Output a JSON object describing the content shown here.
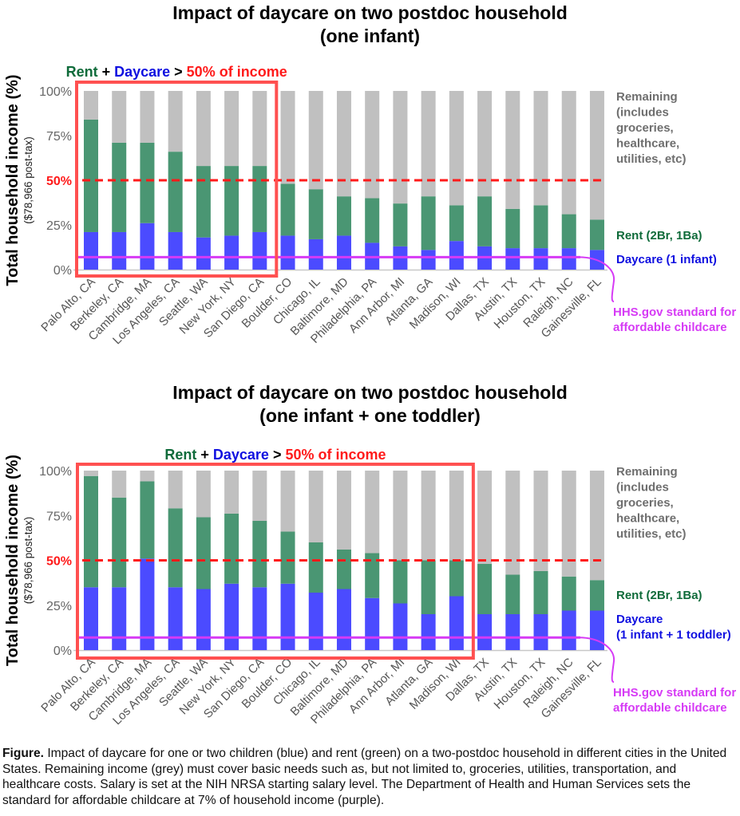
{
  "colors": {
    "daycare": "#4b4bff",
    "rent": "#4a9673",
    "remaining": "#c0c0c0",
    "threshold": "#ff1a1a",
    "highlight_box": "#ff5050",
    "hhs": "#d63af5",
    "rent_label": "#0f6b3a",
    "daycare_label": "#1010e0",
    "remaining_label": "#6e6e6e",
    "axis_text": "#666666"
  },
  "caption": {
    "lead": "Figure.",
    "text": " Impact of daycare for one or two children (blue) and rent (green) on a two-postdoc household in different cities in the United States. Remaining income (grey) must cover basic needs such as, but not limited to, groceries, utilities, transportation, and healthcare costs. Salary is set at the NIH NRSA starting salary level. The Department of Health and Human Services sets the standard for affordable childcare at 7% of household income (purple)."
  },
  "chart_data": [
    {
      "type": "bar",
      "stacked": true,
      "title": [
        "Impact of daycare on two postdoc household",
        "(one infant)"
      ],
      "ylabel": "Total household income (%)",
      "ylabel_sub": "($78,966 post-tax)",
      "ylim": [
        0,
        100
      ],
      "yticks": [
        "0%",
        "25%",
        "50%",
        "75%",
        "100%"
      ],
      "ytick_values": [
        0,
        25,
        50,
        75,
        100
      ],
      "grid": false,
      "categories": [
        "Palo Alto, CA",
        "Berkeley, CA",
        "Cambridge, MA",
        "Los Angeles, CA",
        "Seattle, WA",
        "New York, NY",
        "San Diego, CA",
        "Boulder, CO",
        "Chicago, IL",
        "Baltimore, MD",
        "Philadelphia, PA",
        "Ann Arbor, MI",
        "Atlanta, GA",
        "Madison, WI",
        "Dallas, TX",
        "Austin, TX",
        "Houston, TX",
        "Raleigh, NC",
        "Gainesville, FL"
      ],
      "series": [
        {
          "name": "Daycare (1 infant)",
          "values": [
            21,
            21,
            26,
            21,
            18,
            19,
            21,
            19,
            17,
            19,
            15,
            13,
            11,
            16,
            13,
            12,
            12,
            12,
            11
          ]
        },
        {
          "name": "Rent (2Br, 1Ba)",
          "values": [
            63,
            50,
            45,
            45,
            40,
            39,
            37,
            29,
            28,
            22,
            25,
            24,
            30,
            20,
            28,
            22,
            24,
            19,
            17
          ]
        },
        {
          "name": "Remaining (includes groceries, healthcare, utilities, etc)",
          "values": [
            16,
            29,
            29,
            34,
            42,
            42,
            42,
            52,
            55,
            59,
            60,
            63,
            59,
            64,
            59,
            66,
            64,
            69,
            72
          ]
        }
      ],
      "threshold": {
        "value": 50,
        "label": "50%"
      },
      "hhs_standard": {
        "value": 7,
        "label": [
          "HHS.gov standard for",
          "affordable childcare"
        ]
      },
      "highlight": {
        "first_index": 0,
        "last_index": 6
      },
      "annotation": {
        "parts": [
          {
            "text": "Rent",
            "role": "rent"
          },
          {
            "text": " + ",
            "role": "plain"
          },
          {
            "text": "Daycare",
            "role": "daycare"
          },
          {
            "text": " > ",
            "role": "plain"
          },
          {
            "text": "50% of income",
            "role": "threshold"
          }
        ]
      },
      "legend": {
        "placement": "right",
        "remaining": [
          "Remaining",
          "(includes",
          "groceries,",
          "healthcare,",
          "utilities, etc)"
        ],
        "rent": [
          "Rent (2Br, 1Ba)"
        ],
        "daycare": [
          "Daycare (1 infant)"
        ]
      }
    },
    {
      "type": "bar",
      "stacked": true,
      "title": [
        "Impact of daycare on two postdoc household",
        "(one infant + one toddler)"
      ],
      "ylabel": "Total household income (%)",
      "ylabel_sub": "($78,966 post-tax)",
      "ylim": [
        0,
        100
      ],
      "yticks": [
        "0%",
        "25%",
        "50%",
        "75%",
        "100%"
      ],
      "ytick_values": [
        0,
        25,
        50,
        75,
        100
      ],
      "grid": false,
      "categories": [
        "Palo Alto, CA",
        "Berkeley, CA",
        "Cambridge, MA",
        "Los Angeles, CA",
        "Seattle, WA",
        "New York, NY",
        "San Diego, CA",
        "Boulder, CO",
        "Chicago, IL",
        "Baltimore, MD",
        "Philadelphia, PA",
        "Ann Arbor, MI",
        "Atlanta, GA",
        "Madison, WI",
        "Dallas, TX",
        "Austin, TX",
        "Houston, TX",
        "Raleigh, NC",
        "Gainesville, FL"
      ],
      "series": [
        {
          "name": "Daycare (1 infant + 1 toddler)",
          "values": [
            35,
            35,
            51,
            35,
            34,
            37,
            35,
            37,
            32,
            34,
            29,
            26,
            20,
            30,
            20,
            20,
            20,
            22,
            22
          ]
        },
        {
          "name": "Rent (2Br, 1Ba)",
          "values": [
            62,
            50,
            43,
            44,
            40,
            39,
            37,
            29,
            28,
            22,
            25,
            24,
            30,
            20,
            28,
            22,
            24,
            19,
            17
          ]
        },
        {
          "name": "Remaining (includes groceries, healthcare, utilities, etc)",
          "values": [
            3,
            15,
            6,
            21,
            26,
            24,
            28,
            34,
            40,
            44,
            46,
            50,
            50,
            50,
            52,
            58,
            56,
            59,
            61
          ]
        }
      ],
      "threshold": {
        "value": 50,
        "label": "50%"
      },
      "hhs_standard": {
        "value": 7,
        "label": [
          "HHS.gov standard for",
          "affordable childcare"
        ]
      },
      "highlight": {
        "first_index": 0,
        "last_index": 13
      },
      "annotation": {
        "parts": [
          {
            "text": "Rent",
            "role": "rent"
          },
          {
            "text": " + ",
            "role": "plain"
          },
          {
            "text": "Daycare",
            "role": "daycare"
          },
          {
            "text": " > ",
            "role": "plain"
          },
          {
            "text": "50% of income",
            "role": "threshold"
          }
        ]
      },
      "legend": {
        "placement": "right",
        "remaining": [
          "Remaining",
          "(includes",
          "groceries,",
          "healthcare,",
          "utilities, etc)"
        ],
        "rent": [
          "Rent (2Br, 1Ba)"
        ],
        "daycare": [
          "Daycare",
          "(1 infant + 1 toddler)"
        ]
      }
    }
  ]
}
